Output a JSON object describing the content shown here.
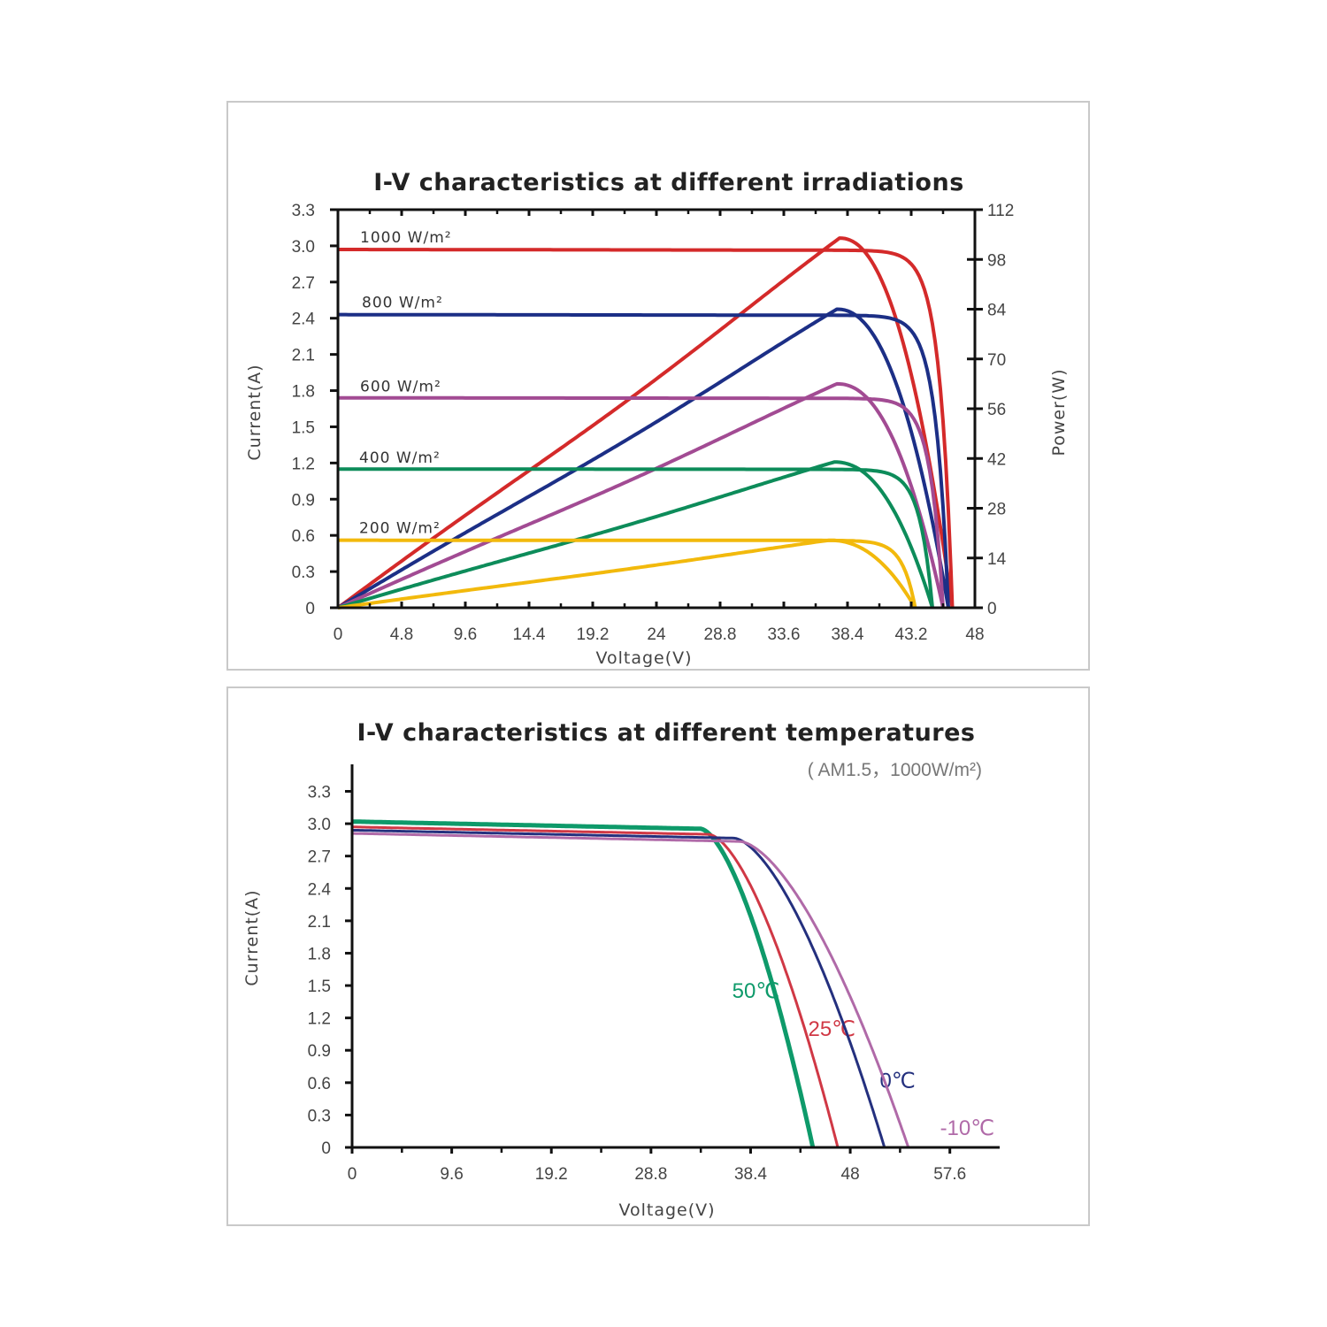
{
  "chart_data": [
    {
      "type": "line",
      "title": "I-V characteristics at different irradiations",
      "xlabel": "Voltage(V)",
      "ylabel": "Current(A)",
      "y2label": "Power(W)",
      "xticks": [
        "0",
        "4.8",
        "9.6",
        "14.4",
        "19.2",
        "24",
        "28.8",
        "33.6",
        "38.4",
        "43.2",
        "48"
      ],
      "yticks": [
        "0",
        "0.3",
        "0.6",
        "0.9",
        "1.2",
        "1.5",
        "1.8",
        "2.1",
        "2.4",
        "2.7",
        "3.0",
        "3.3"
      ],
      "y2ticks": [
        "0",
        "14",
        "28",
        "42",
        "56",
        "70",
        "84",
        "98",
        "112"
      ],
      "xlim": [
        0,
        48
      ],
      "ylim": [
        0,
        3.3
      ],
      "y2lim": [
        0,
        112
      ],
      "series": [
        {
          "name": "1000 W/m²",
          "color": "#d42a2a",
          "isc": 2.97,
          "voc": 46.3,
          "pmax": 104,
          "vmp": 37.8
        },
        {
          "name": "800 W/m²",
          "color": "#1c2f86",
          "isc": 2.43,
          "voc": 46.0,
          "pmax": 84,
          "vmp": 37.6
        },
        {
          "name": "600 W/m²",
          "color": "#a24b93",
          "isc": 1.74,
          "voc": 45.6,
          "pmax": 63,
          "vmp": 37.6
        },
        {
          "name": "400 W/m²",
          "color": "#0d8c5a",
          "isc": 1.15,
          "voc": 44.8,
          "pmax": 41,
          "vmp": 37.4
        },
        {
          "name": "200 W/m²",
          "color": "#f2b90c",
          "isc": 0.56,
          "voc": 43.5,
          "pmax": 19,
          "vmp": 37.0
        }
      ]
    },
    {
      "type": "line",
      "title": "I-V characteristics at different temperatures",
      "subtitle": "( AM1.5，1000W/m²)",
      "xlabel": "Voltage(V)",
      "ylabel": "Current(A)",
      "xticks": [
        "0",
        "9.6",
        "19.2",
        "28.8",
        "38.4",
        "48",
        "57.6"
      ],
      "yticks": [
        "0",
        "0.3",
        "0.6",
        "0.9",
        "1.2",
        "1.5",
        "1.8",
        "2.1",
        "2.4",
        "2.7",
        "3.0",
        "3.3"
      ],
      "xlim": [
        0,
        62.4
      ],
      "ylim": [
        0,
        3.55
      ],
      "series": [
        {
          "name": "50℃",
          "color": "#0e9a6a",
          "isc": 3.02,
          "voc": 44.4,
          "knee": 33.6
        },
        {
          "name": "25℃",
          "color": "#d03845",
          "isc": 2.97,
          "voc": 46.8,
          "knee": 34.4
        },
        {
          "name": "0℃",
          "color": "#24307e",
          "isc": 2.94,
          "voc": 51.3,
          "knee": 36.8
        },
        {
          "name": "-10℃",
          "color": "#b06aa8",
          "isc": 2.91,
          "voc": 53.6,
          "knee": 37.4
        }
      ]
    }
  ]
}
